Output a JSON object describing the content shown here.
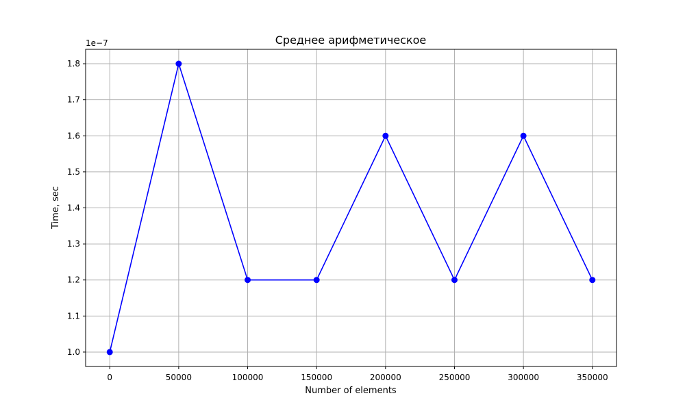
{
  "chart_data": {
    "type": "line",
    "title": "Среднее арифметическое",
    "xlabel": "Number of elements",
    "ylabel": "Time, sec",
    "y_offset_label": "1e−7",
    "x": [
      0,
      50000,
      100000,
      150000,
      200000,
      250000,
      300000,
      350000
    ],
    "series": [
      {
        "values": [
          1e-07,
          1.8e-07,
          1.2e-07,
          1.2e-07,
          1.6e-07,
          1.2e-07,
          1.6e-07,
          1.2e-07
        ]
      }
    ],
    "y_scale": 1e-07,
    "xlim": [
      -17500,
      367500
    ],
    "ylim": [
      9.6e-08,
      1.84e-07
    ],
    "x_ticks": [
      0,
      50000,
      100000,
      150000,
      200000,
      250000,
      300000,
      350000
    ],
    "x_tick_labels": [
      "0",
      "50000",
      "100000",
      "150000",
      "200000",
      "250000",
      "300000",
      "350000"
    ],
    "y_ticks": [
      1e-07,
      1.1e-07,
      1.2e-07,
      1.3e-07,
      1.4e-07,
      1.5e-07,
      1.6e-07,
      1.7e-07,
      1.8e-07
    ],
    "y_tick_labels": [
      "1.0",
      "1.1",
      "1.2",
      "1.3",
      "1.4",
      "1.5",
      "1.6",
      "1.7",
      "1.8"
    ],
    "grid": true,
    "line_color": "#0000ff",
    "marker": "circle"
  }
}
